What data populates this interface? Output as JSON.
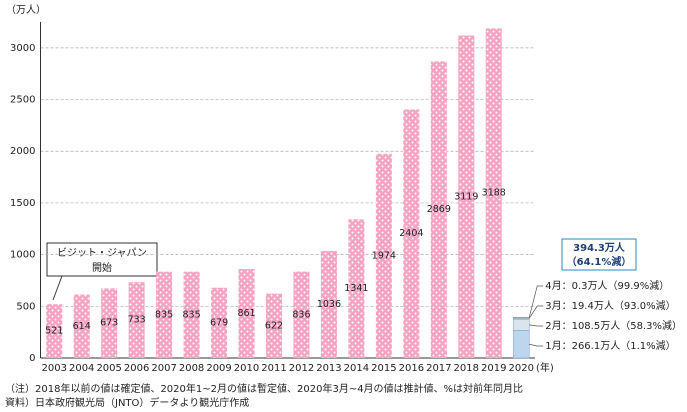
{
  "chart_data": {
    "type": "bar",
    "y_unit_label": "（万人）",
    "x_unit_label": "(年)",
    "categories": [
      "2003",
      "2004",
      "2005",
      "2006",
      "2007",
      "2008",
      "2009",
      "2010",
      "2011",
      "2012",
      "2013",
      "2014",
      "2015",
      "2016",
      "2017",
      "2018",
      "2019",
      "2020"
    ],
    "values": [
      521,
      614,
      673,
      733,
      835,
      835,
      679,
      861,
      622,
      836,
      1036,
      1341,
      1974,
      2404,
      2869,
      3119,
      3188,
      null
    ],
    "color": "#f4a3c3",
    "stack_segments": [
      {
        "value": 266.1,
        "label": "1月：266.1万人（1.1%減）",
        "color": "#bcd6f0"
      },
      {
        "value": 108.5,
        "label": "2月：108.5万人（58.3%減）",
        "color": "#d9e4ee"
      },
      {
        "value": 19.4,
        "label": "3月：19.4万人（93.0%減）",
        "color": "#a9b4c0"
      },
      {
        "value": 0.3,
        "label": "4月：0.3万人（99.9%減）",
        "color": "#6d7d8f"
      }
    ],
    "total_labels": [
      "394.3万人",
      "（64.1%減）"
    ],
    "callout": [
      "ビジット・ジャパン",
      "開始"
    ],
    "notes": [
      "（注）2018年以前の値は確定値、2020年1~2月の値は暫定値、2020年3月~4月の値は推計値、%は対前年同月比",
      "資料）日本政府観光局（JNTO）データより観光庁作成"
    ],
    "ylim": [
      0,
      3250
    ],
    "yticks": [
      0,
      500,
      1000,
      1500,
      2000,
      2500,
      3000
    ],
    "grid": true
  }
}
